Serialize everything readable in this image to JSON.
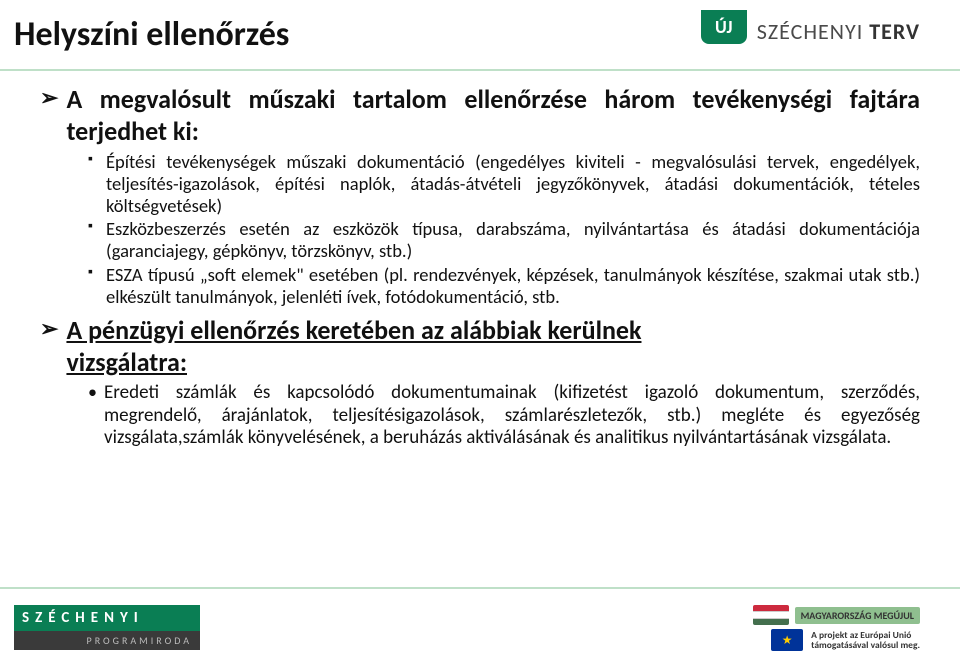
{
  "title": "Helyszíni ellenőrzés",
  "logo": {
    "badge": "ÚJ",
    "brand_light": "SZÉCHENYI",
    "brand_bold": "TERV"
  },
  "intro": "A megvalósult műszaki tartalom ellenőrzése három tevékenységi fajtára terjedhet ki:",
  "bullets": [
    "Építési tevékenységek műszaki dokumentáció (engedélyes kiviteli - megvalósulási tervek, engedélyek, teljesítés-igazolások, építési naplók, átadás-átvételi jegyzőkönyvek, átadási dokumentációk, tételes költségvetések)",
    "Eszközbeszerzés esetén az eszközök típusa, darabszáma, nyilvántartása és átadási dokumentációja (garanciajegy, gépkönyv, törzskönyv, stb.)",
    "ESZA típusú „soft elemek\" esetében (pl. rendezvények, képzések, tanulmányok készítése, szakmai utak stb.) elkészült tanulmányok, jelenléti ívek, fotódokumentáció, stb."
  ],
  "second_main_lead": "A pénzügyi ellenőrzés keretében az alábbiak kerülnek",
  "second_main_tail": "vizsgálatra:",
  "dot_item": "Eredeti számlák és kapcsolódó dokumentumainak (kifizetést igazoló dokumentum, szerződés, megrendelő, árajánlatok, teljesítésigazolások, számlarészletezők, stb.) megléte és egyezőség vizsgálata,számlák könyvelésének, a beruházás aktiválásának és analitikus nyilvántartásának vizsgálata.",
  "footer": {
    "sz_name": "SZÉCHENYI",
    "sz_sub": "PROGRAMIRODA",
    "mm": "MAGYARORSZÁG MEGÚJUL",
    "eu1": "A projekt az Európai Unió",
    "eu2": "támogatásával valósul meg.",
    "eu_star": "★"
  }
}
